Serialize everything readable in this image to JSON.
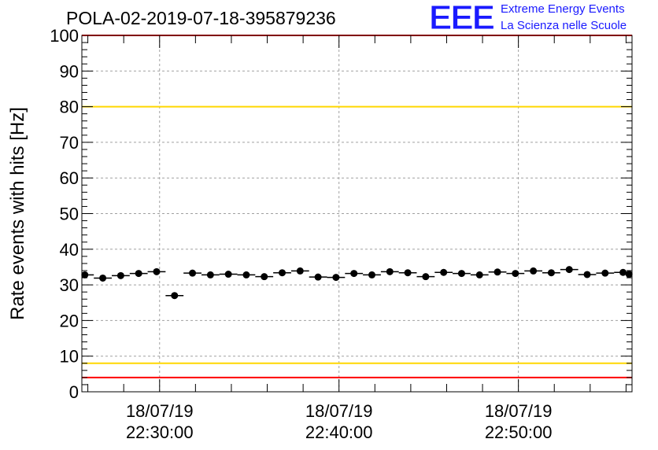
{
  "header": {
    "title": "POLA-02-2019-07-18-395879236",
    "logo_text": "EEE",
    "logo_line1": "Extreme Energy Events",
    "logo_line2": "La Scienza nelle Scuole"
  },
  "colors": {
    "logo": "#1a1aff",
    "upper_limit": "#ff0000",
    "lower_limit": "#ff0000",
    "warning_line": "#ffd700",
    "grid": "#a0a0a0",
    "points": "#000000"
  },
  "chart_data": {
    "type": "scatter",
    "title": "POLA-02-2019-07-18-395879236",
    "ylabel": "Rate events with hits [Hz]",
    "xlabel": "",
    "ylim": [
      0,
      100
    ],
    "yticks": [
      0,
      10,
      20,
      30,
      40,
      50,
      60,
      70,
      80,
      90,
      100
    ],
    "xlim": [
      "2019-07-18 22:25:40",
      "2019-07-18 22:56:20"
    ],
    "xtick_labels": [
      {
        "date": "18/07/19",
        "time": "22:30:00"
      },
      {
        "date": "18/07/19",
        "time": "22:40:00"
      },
      {
        "date": "18/07/19",
        "time": "22:50:00"
      }
    ],
    "grid": true,
    "reference_lines": [
      {
        "y": 100,
        "color": "#ff0000"
      },
      {
        "y": 80,
        "color": "#ffd700"
      },
      {
        "y": 8,
        "color": "#ffd700"
      },
      {
        "y": 4,
        "color": "#ff0000"
      }
    ],
    "x": [
      "22:25:50",
      "22:26:50",
      "22:27:50",
      "22:28:50",
      "22:29:50",
      "22:30:50",
      "22:31:50",
      "22:32:50",
      "22:33:50",
      "22:34:50",
      "22:35:50",
      "22:36:50",
      "22:37:50",
      "22:38:50",
      "22:39:50",
      "22:40:50",
      "22:41:50",
      "22:42:50",
      "22:43:50",
      "22:44:50",
      "22:45:50",
      "22:46:50",
      "22:47:50",
      "22:48:50",
      "22:49:50",
      "22:50:50",
      "22:51:50",
      "22:52:50",
      "22:53:50",
      "22:54:50",
      "22:55:50",
      "22:56:10"
    ],
    "values": [
      32.8,
      31.9,
      32.6,
      33.2,
      33.7,
      27.0,
      33.3,
      32.8,
      33.0,
      32.8,
      32.3,
      33.4,
      33.9,
      32.2,
      32.1,
      33.2,
      32.8,
      33.7,
      33.4,
      32.3,
      33.5,
      33.2,
      32.8,
      33.6,
      33.2,
      33.9,
      33.4,
      34.3,
      32.9,
      33.3,
      33.5,
      33.0
    ]
  }
}
